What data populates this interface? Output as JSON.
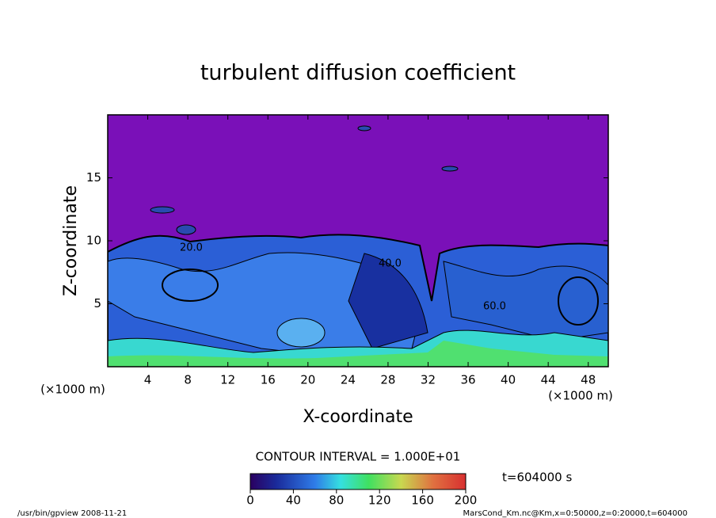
{
  "chart_data": {
    "type": "contour",
    "title": "turbulent diffusion coefficient",
    "x_label": "X-coordinate",
    "y_label": "Z-coordinate",
    "x_unit": "(×1000 m)",
    "y_unit": "(×1000 m)",
    "xlim": [
      0,
      50
    ],
    "xticks": [
      4,
      8,
      12,
      16,
      20,
      24,
      28,
      32,
      36,
      40,
      44,
      48
    ],
    "ylim": [
      0,
      20
    ],
    "yticks": [
      5,
      10,
      15
    ],
    "contour_labels": [
      "20.0",
      "40.0",
      "60.0"
    ],
    "contour_interval": "CONTOUR INTERVAL = 1.000E+01",
    "colorbar": {
      "lim": [
        0,
        200
      ],
      "ticks": [
        0,
        40,
        80,
        120,
        160,
        200
      ]
    },
    "time_label": "t=604000 s",
    "footer_left": "/usr/bin/gpview   2008-11-21",
    "footer_right": "MarsCond_Km.nc@Km,x=0:50000,z=0:20000,t=604000"
  }
}
